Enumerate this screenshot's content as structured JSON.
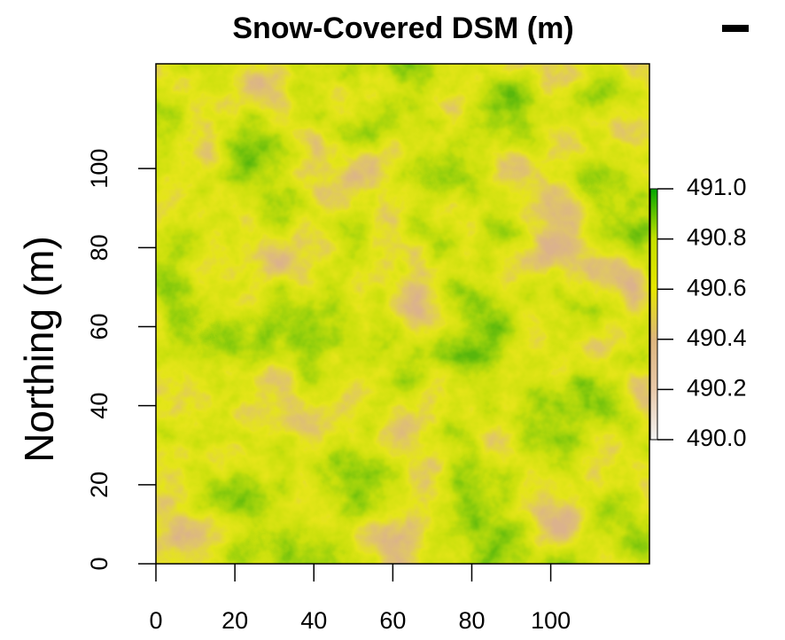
{
  "chart_data": {
    "type": "raster",
    "title": "Snow-Covered DSM (m)",
    "y_label": "Northing (m)",
    "xlim": [
      0,
      125
    ],
    "ylim": [
      0,
      126.5
    ],
    "xticks": [
      0,
      20,
      40,
      60,
      80,
      100
    ],
    "yticks": [
      0,
      20,
      40,
      60,
      80,
      100
    ],
    "zlim": [
      490.0,
      491.0
    ],
    "zticks": [
      {
        "value": 490.0,
        "label": "490.0"
      },
      {
        "value": 490.2,
        "label": "490.2"
      },
      {
        "value": 490.4,
        "label": "490.4"
      },
      {
        "value": 490.6,
        "label": "490.6"
      },
      {
        "value": 490.8,
        "label": "490.8"
      },
      {
        "value": 491.0,
        "label": "491.0"
      }
    ],
    "colors": [
      "#F2F2F2",
      "#E8C8A8",
      "#DDB57D",
      "#E6E600",
      "#C5E000",
      "#00A600"
    ]
  }
}
